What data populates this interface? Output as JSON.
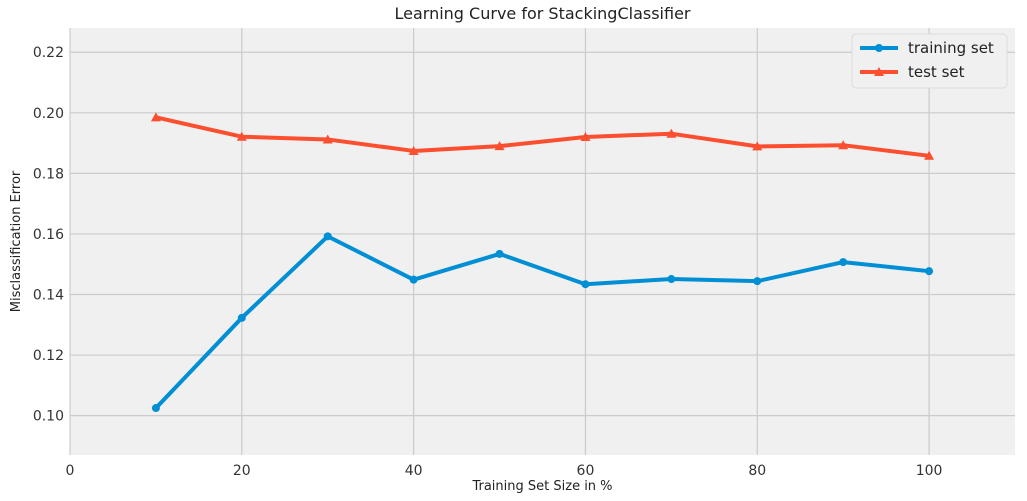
{
  "chart_data": {
    "type": "line",
    "title": "Learning Curve for StackingClassifier",
    "xlabel": "Training Set Size in %",
    "ylabel": "Misclassification Error",
    "xlim": [
      0,
      110
    ],
    "ylim": [
      0.087,
      0.228
    ],
    "xticks": [
      0,
      20,
      40,
      60,
      80,
      100
    ],
    "yticks": [
      0.1,
      0.12,
      0.14,
      0.16,
      0.18,
      0.2,
      0.22
    ],
    "grid": true,
    "legend": "top-right",
    "x": [
      10,
      20,
      30,
      40,
      50,
      60,
      70,
      80,
      90,
      100
    ],
    "series": [
      {
        "name": "training set",
        "marker": "circle",
        "color": "#008fd5",
        "values": [
          0.1025,
          0.1323,
          0.1592,
          0.1449,
          0.1534,
          0.1434,
          0.1451,
          0.1444,
          0.1507,
          0.1477
        ]
      },
      {
        "name": "test set",
        "marker": "triangle",
        "color": "#fc4f30",
        "values": [
          0.1985,
          0.1921,
          0.1912,
          0.1874,
          0.189,
          0.192,
          0.1931,
          0.1889,
          0.1893,
          0.1858
        ]
      }
    ]
  },
  "style": {
    "plot_background": "#f0f0f0",
    "grid_color": "#cbcbcb"
  }
}
